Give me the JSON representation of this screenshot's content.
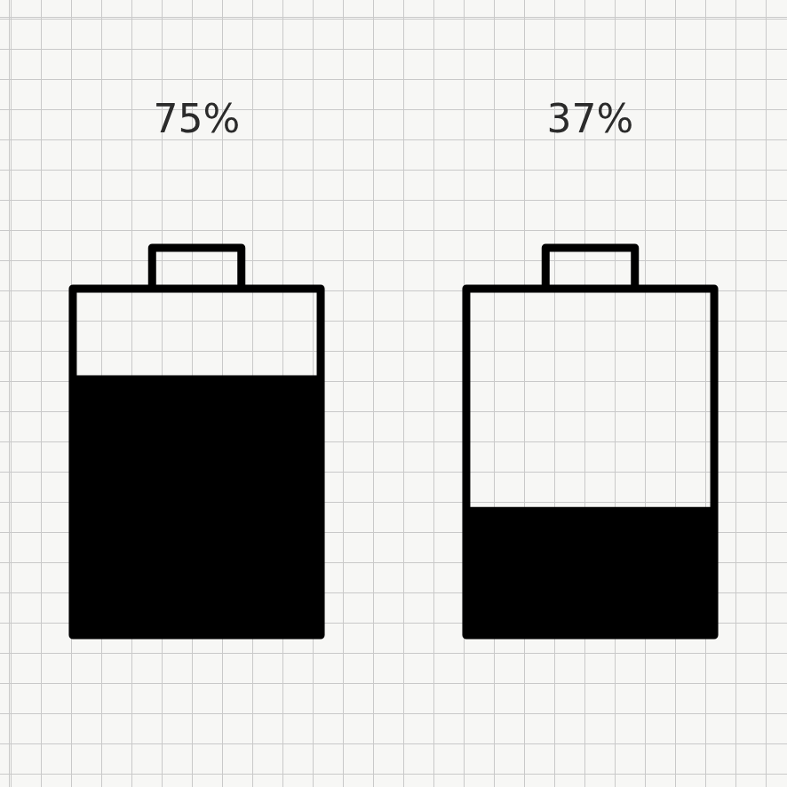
{
  "chart_data": {
    "type": "bar",
    "categories": [
      null,
      null
    ],
    "values": [
      75,
      37
    ],
    "value_labels": [
      "75%",
      "37%"
    ],
    "data_labels": true,
    "color": "#000000",
    "ylim": [
      0,
      100
    ],
    "tick_labels": false
  }
}
